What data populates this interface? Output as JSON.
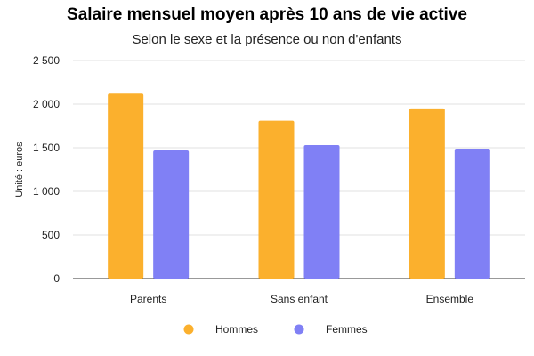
{
  "chart_data": {
    "type": "bar",
    "title": "Salaire mensuel moyen après 10 ans de vie active",
    "subtitle": "Selon le sexe et la présence ou non d'enfants",
    "xlabel": "",
    "ylabel": "Unité : euros",
    "categories": [
      "Parents",
      "Sans enfant",
      "Ensemble"
    ],
    "series": [
      {
        "name": "Hommes",
        "values": [
          2120,
          1810,
          1950
        ],
        "color": "#FBB02D"
      },
      {
        "name": "Femmes",
        "values": [
          1470,
          1530,
          1490
        ],
        "color": "#8080F5"
      }
    ],
    "ylim": [
      0,
      2500
    ],
    "yticks": [
      0,
      500,
      1000,
      1500,
      2000,
      2500
    ],
    "ytick_labels": [
      "0",
      "500",
      "1 000",
      "1 500",
      "2 000",
      "2 500"
    ],
    "grid": true,
    "legend_position": "bottom"
  }
}
